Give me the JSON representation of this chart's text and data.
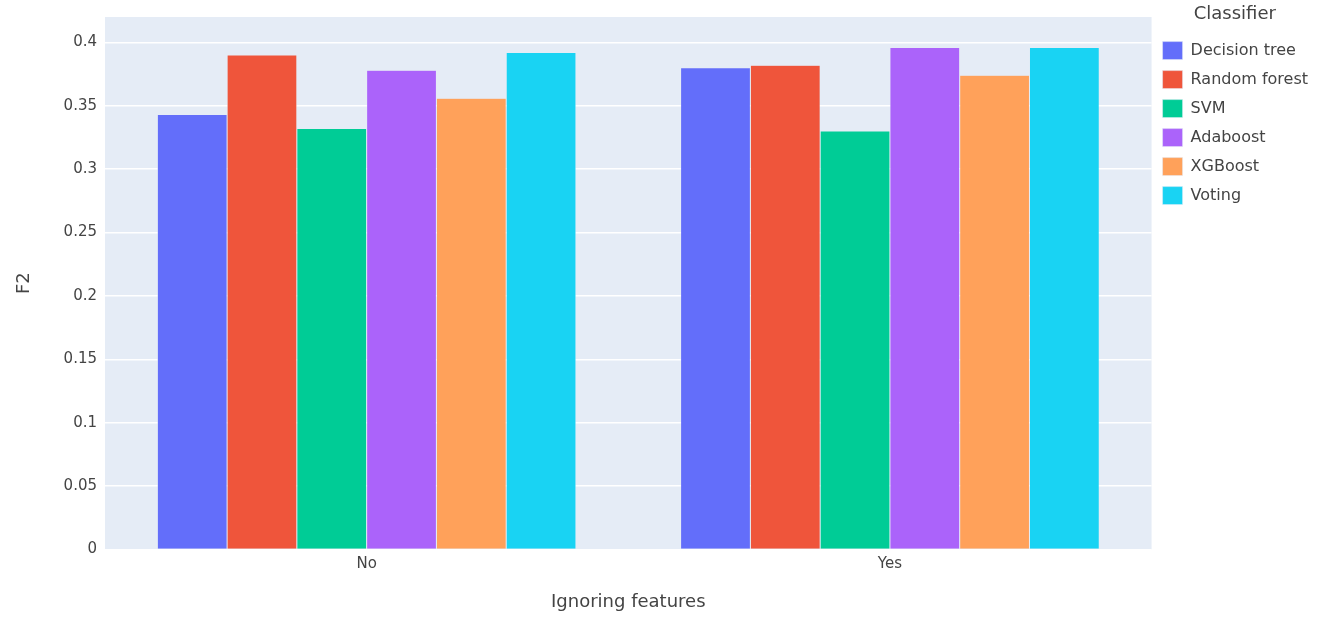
{
  "chart_data": {
    "type": "bar",
    "xlabel": "Ignoring features",
    "ylabel": "F2",
    "legend_title": "Classifier",
    "categories": [
      "No",
      "Yes"
    ],
    "series": [
      {
        "name": "Decision tree",
        "color": "#636efa",
        "values": [
          0.343,
          0.38
        ]
      },
      {
        "name": "Random forest",
        "color": "#ef553b",
        "values": [
          0.39,
          0.382
        ]
      },
      {
        "name": "SVM",
        "color": "#00cc96",
        "values": [
          0.332,
          0.33
        ]
      },
      {
        "name": "Adaboost",
        "color": "#ab63fa",
        "values": [
          0.378,
          0.396
        ]
      },
      {
        "name": "XGBoost",
        "color": "#ffa15a",
        "values": [
          0.356,
          0.374
        ]
      },
      {
        "name": "Voting",
        "color": "#19d3f3",
        "values": [
          0.392,
          0.396
        ]
      }
    ],
    "ylim": [
      0,
      0.42
    ],
    "yticks": [
      0,
      0.05,
      0.1,
      0.15,
      0.2,
      0.25,
      0.3,
      0.35,
      0.4
    ],
    "grid": "y",
    "legend": "right"
  }
}
